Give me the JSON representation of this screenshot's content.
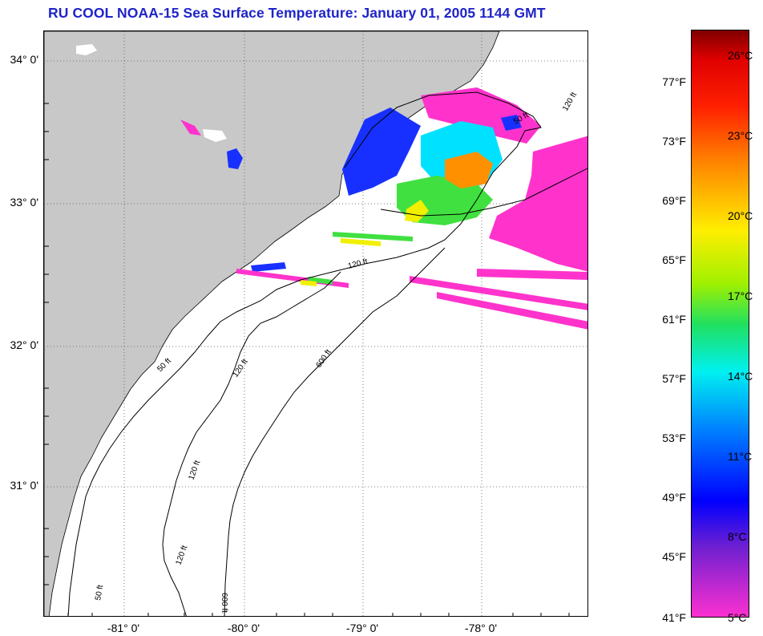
{
  "title": "RU COOL  NOAA-15  Sea Surface Temperature:  January 01, 2005 1144 GMT",
  "latitude_labels": [
    {
      "label": "34° 0'",
      "lat": 34
    },
    {
      "label": "33° 0'",
      "lat": 33
    },
    {
      "label": "32° 0'",
      "lat": 32
    },
    {
      "label": "31° 0'",
      "lat": 31
    }
  ],
  "longitude_labels": [
    {
      "label": "-81° 0'",
      "lon": -81
    },
    {
      "label": "-80° 0'",
      "lon": -80
    },
    {
      "label": "-79° 0'",
      "lon": -79
    },
    {
      "label": "-78° 0'",
      "lon": -78
    }
  ],
  "contour_labels": {
    "fifty": "50 ft",
    "one_twenty": "120 ft",
    "six_hundred": "600 ft"
  },
  "colorbar": {
    "fahrenheit": [
      "77°F",
      "73°F",
      "69°F",
      "65°F",
      "61°F",
      "57°F",
      "53°F",
      "49°F",
      "45°F",
      "41°F"
    ],
    "celsius": [
      "26°C",
      "23°C",
      "20°C",
      "17°C",
      "14°C",
      "11°C",
      "8°C",
      "5°C"
    ]
  },
  "colors": {
    "title": "#1f24c8",
    "land": "#c8c8c8",
    "ocean": "#ffffff",
    "cold_magenta": "#ff33cc",
    "blue": "#1830ff",
    "cyan": "#00e0ff",
    "green": "#40e040",
    "yellow": "#f0f000",
    "orange": "#ff9000"
  }
}
